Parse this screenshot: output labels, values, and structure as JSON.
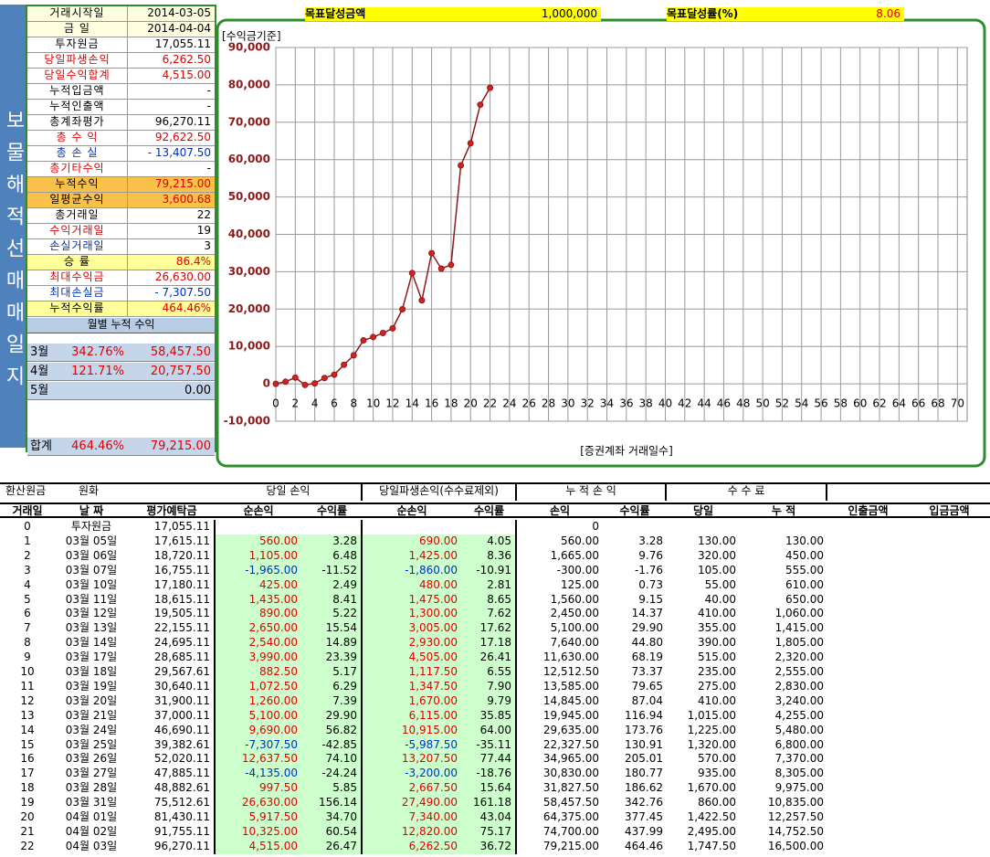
{
  "side_title": "보물해적선매매일지",
  "summary": [
    {
      "label": "거래시작일",
      "value": "2014-03-05"
    },
    {
      "label": "금 일",
      "value": "2014-04-04"
    },
    {
      "label": "투자원금",
      "value": "17,055.11"
    },
    {
      "label": "당일파생손익",
      "value": "6,262.50"
    },
    {
      "label": "당일수익합계",
      "value": "4,515.00"
    },
    {
      "label": "누적입금액",
      "value": "-"
    },
    {
      "label": "누적인출액",
      "value": "-"
    },
    {
      "label": "총계좌평가",
      "value": "96,270.11"
    },
    {
      "label": "총 수 익",
      "value": "92,622.50"
    },
    {
      "label": "총 손 실",
      "value": "- 13,407.50"
    },
    {
      "label": "총기타수익",
      "value": "-"
    },
    {
      "label": "누적수익",
      "value": "79,215.00"
    },
    {
      "label": "일평균수익",
      "value": "3,600.68"
    },
    {
      "label": "총거래일",
      "value": "22"
    },
    {
      "label": "수익거래일",
      "value": "19"
    },
    {
      "label": "손실거래일",
      "value": "3"
    },
    {
      "label": "승 률",
      "value": "86.4%"
    },
    {
      "label": "최대수익금",
      "value": "26,630.00"
    },
    {
      "label": "최대손실금",
      "value": "- 7,307.50"
    },
    {
      "label": "누적수익률",
      "value": "464.46%"
    }
  ],
  "monthly": {
    "title": "월별 누적 수익",
    "rows": [
      [
        "3월",
        "342.76%",
        "58,457.50"
      ],
      [
        "4월",
        "121.71%",
        "20,757.50"
      ],
      [
        "5월",
        "",
        "0.00"
      ],
      [
        "합계",
        "464.46%",
        "79,215.00"
      ]
    ]
  },
  "targets": [
    {
      "label": "목표달성금액",
      "value": "1,000,000"
    },
    {
      "label": "목표달성률(%)",
      "value": "8.06"
    }
  ],
  "chart_data": {
    "type": "line",
    "title": "[수익금기준]",
    "x_label": "[증권계좌 거래일수]",
    "x": [
      0,
      1,
      2,
      3,
      4,
      5,
      6,
      7,
      8,
      9,
      10,
      11,
      12,
      13,
      14,
      15,
      16,
      17,
      18,
      19,
      20,
      21,
      22
    ],
    "series": [
      {
        "color": "#8b1a1a",
        "values": [
          0,
          560,
          1665,
          -300,
          125,
          1560,
          2450,
          5100,
          7640,
          11630,
          12512.5,
          13585,
          14845,
          19945,
          29635,
          22327.5,
          34965,
          30830,
          31827.5,
          58457.5,
          64375,
          74700,
          79215
        ]
      }
    ],
    "xlim": [
      0,
      71
    ],
    "xticks": [
      0,
      2,
      4,
      6,
      8,
      10,
      12,
      14,
      16,
      18,
      20,
      22,
      24,
      26,
      28,
      30,
      32,
      34,
      36,
      38,
      40,
      42,
      44,
      46,
      48,
      50,
      52,
      54,
      56,
      58,
      60,
      62,
      64,
      66,
      68,
      70
    ],
    "ylim": [
      -10000,
      90000
    ],
    "yticks": [
      {
        "value": -10000,
        "label": "-10,000"
      },
      0,
      {
        "value": 10000,
        "label": "10,000"
      },
      {
        "value": 20000,
        "label": "20,000"
      },
      {
        "value": 30000,
        "label": "30,000"
      },
      {
        "value": 40000,
        "label": "40,000"
      },
      {
        "value": 50000,
        "label": "50,000"
      },
      {
        "value": 60000,
        "label": "60,000"
      },
      {
        "value": 70000,
        "label": "70,000"
      },
      {
        "value": 80000,
        "label": "80,000"
      },
      {
        "value": 90000,
        "label": "90,000"
      }
    ],
    "grid": true
  },
  "table": {
    "top_headers": [
      "환산원금",
      "원화",
      "당일 손익",
      "당일파생손익(수수료제외)",
      "누 적 손 익",
      "수 수 료"
    ],
    "headers": [
      "거래일",
      "날 짜",
      "평가예탁금",
      "순손익",
      "수익률",
      "순손익",
      "수익률",
      "손익",
      "수익률",
      "당일",
      "누 적",
      "인출금액",
      "입금금액"
    ],
    "rows": [
      [
        "0",
        "투자원금",
        "17,055.11",
        "",
        "",
        "",
        "",
        "0",
        "",
        "",
        ""
      ],
      [
        "1",
        "03월 05일",
        "17,615.11",
        "560.00",
        "3.28",
        "690.00",
        "4.05",
        "560.00",
        "3.28",
        "130.00",
        "130.00"
      ],
      [
        "2",
        "03월 06일",
        "18,720.11",
        "1,105.00",
        "6.48",
        "1,425.00",
        "8.36",
        "1,665.00",
        "9.76",
        "320.00",
        "450.00"
      ],
      [
        "3",
        "03월 07일",
        "16,755.11",
        "-1,965.00",
        "-11.52",
        "-1,860.00",
        "-10.91",
        "-300.00",
        "-1.76",
        "105.00",
        "555.00"
      ],
      [
        "4",
        "03월 10일",
        "17,180.11",
        "425.00",
        "2.49",
        "480.00",
        "2.81",
        "125.00",
        "0.73",
        "55.00",
        "610.00"
      ],
      [
        "5",
        "03월 11일",
        "18,615.11",
        "1,435.00",
        "8.41",
        "1,475.00",
        "8.65",
        "1,560.00",
        "9.15",
        "40.00",
        "650.00"
      ],
      [
        "6",
        "03월 12일",
        "19,505.11",
        "890.00",
        "5.22",
        "1,300.00",
        "7.62",
        "2,450.00",
        "14.37",
        "410.00",
        "1,060.00"
      ],
      [
        "7",
        "03월 13일",
        "22,155.11",
        "2,650.00",
        "15.54",
        "3,005.00",
        "17.62",
        "5,100.00",
        "29.90",
        "355.00",
        "1,415.00"
      ],
      [
        "8",
        "03월 14일",
        "24,695.11",
        "2,540.00",
        "14.89",
        "2,930.00",
        "17.18",
        "7,640.00",
        "44.80",
        "390.00",
        "1,805.00"
      ],
      [
        "9",
        "03월 17일",
        "28,685.11",
        "3,990.00",
        "23.39",
        "4,505.00",
        "26.41",
        "11,630.00",
        "68.19",
        "515.00",
        "2,320.00"
      ],
      [
        "10",
        "03월 18일",
        "29,567.61",
        "882.50",
        "5.17",
        "1,117.50",
        "6.55",
        "12,512.50",
        "73.37",
        "235.00",
        "2,555.00"
      ],
      [
        "11",
        "03월 19일",
        "30,640.11",
        "1,072.50",
        "6.29",
        "1,347.50",
        "7.90",
        "13,585.00",
        "79.65",
        "275.00",
        "2,830.00"
      ],
      [
        "12",
        "03월 20일",
        "31,900.11",
        "1,260.00",
        "7.39",
        "1,670.00",
        "9.79",
        "14,845.00",
        "87.04",
        "410.00",
        "3,240.00"
      ],
      [
        "13",
        "03월 21일",
        "37,000.11",
        "5,100.00",
        "29.90",
        "6,115.00",
        "35.85",
        "19,945.00",
        "116.94",
        "1,015.00",
        "4,255.00"
      ],
      [
        "14",
        "03월 24일",
        "46,690.11",
        "9,690.00",
        "56.82",
        "10,915.00",
        "64.00",
        "29,635.00",
        "173.76",
        "1,225.00",
        "5,480.00"
      ],
      [
        "15",
        "03월 25일",
        "39,382.61",
        "-7,307.50",
        "-42.85",
        "-5,987.50",
        "-35.11",
        "22,327.50",
        "130.91",
        "1,320.00",
        "6,800.00"
      ],
      [
        "16",
        "03월 26일",
        "52,020.11",
        "12,637.50",
        "74.10",
        "13,207.50",
        "77.44",
        "34,965.00",
        "205.01",
        "570.00",
        "7,370.00"
      ],
      [
        "17",
        "03월 27일",
        "47,885.11",
        "-4,135.00",
        "-24.24",
        "-3,200.00",
        "-18.76",
        "30,830.00",
        "180.77",
        "935.00",
        "8,305.00"
      ],
      [
        "18",
        "03월 28일",
        "48,882.61",
        "997.50",
        "5.85",
        "2,667.50",
        "15.64",
        "31,827.50",
        "186.62",
        "1,670.00",
        "9,975.00"
      ],
      [
        "19",
        "03월 31일",
        "75,512.61",
        "26,630.00",
        "156.14",
        "27,490.00",
        "161.18",
        "58,457.50",
        "342.76",
        "860.00",
        "10,835.00"
      ],
      [
        "20",
        "04월 01일",
        "81,430.11",
        "5,917.50",
        "34.70",
        "7,340.00",
        "43.04",
        "64,375.00",
        "377.45",
        "1,422.50",
        "12,257.50"
      ],
      [
        "21",
        "04월 02일",
        "91,755.11",
        "10,325.00",
        "60.54",
        "12,820.00",
        "75.17",
        "74,700.00",
        "437.99",
        "2,495.00",
        "14,752.50"
      ],
      [
        "22",
        "04월 03일",
        "96,270.11",
        "4,515.00",
        "26.47",
        "6,262.50",
        "36.72",
        "79,215.00",
        "464.46",
        "1,747.50",
        "16,500.00"
      ]
    ]
  }
}
